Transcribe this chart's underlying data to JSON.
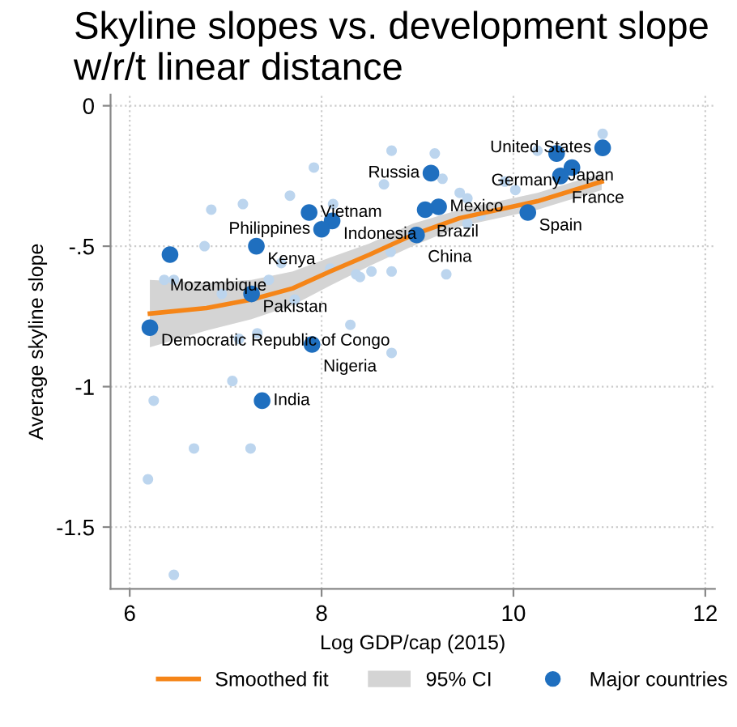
{
  "chart_data": {
    "type": "scatter",
    "title": "Skyline slopes vs. development slope w/r/t linear distance",
    "xlabel": "Log GDP/cap (2015)",
    "ylabel": "Average skyline slope",
    "xlim": [
      5.8,
      12.1
    ],
    "xticks": [
      6,
      8,
      10,
      12
    ],
    "ylim": [
      -1.72,
      0.04
    ],
    "yticks": [
      {
        "value": 0,
        "label": "0"
      },
      {
        "value": -0.5,
        "label": "-.5"
      },
      {
        "value": -1,
        "label": "-1"
      },
      {
        "value": -1.5,
        "label": "-1.5"
      }
    ],
    "grid": true,
    "legend": "bottom",
    "annotations": [
      "95% CI"
    ],
    "series": [
      {
        "color": "#bcd5ee",
        "marker": "circle",
        "x": [
          8.73,
          7.92,
          8.65,
          7.67,
          6.85,
          7.18,
          8.12,
          6.78,
          7.58,
          8.72,
          8.73,
          8.52,
          8.36,
          8.4,
          8.09,
          7.45,
          6.36,
          6.46,
          6.96,
          7.72,
          8.3,
          7.33,
          7.14,
          8.73,
          7.07,
          10.93,
          10.25,
          9.18,
          9.91,
          10.02,
          9.26,
          9.44,
          9.52,
          9.66,
          9.52,
          9.3,
          6.25,
          6.67,
          7.26,
          6.19,
          6.46
        ],
        "values": [
          -0.16,
          -0.22,
          -0.28,
          -0.32,
          -0.37,
          -0.35,
          -0.35,
          -0.5,
          -0.56,
          -0.52,
          -0.59,
          -0.59,
          -0.6,
          -0.61,
          -0.58,
          -0.62,
          -0.62,
          -0.62,
          -0.67,
          -0.69,
          -0.78,
          -0.81,
          -0.83,
          -0.88,
          -0.98,
          -0.1,
          -0.16,
          -0.17,
          -0.27,
          -0.3,
          -0.26,
          -0.31,
          -0.33,
          -0.39,
          -0.42,
          -0.6,
          -1.05,
          -1.22,
          -1.22,
          -1.33,
          -1.67
        ]
      },
      {
        "type": "line",
        "name": "Smoothed fit",
        "color": "#f58518",
        "x": [
          6.21,
          6.8,
          7.27,
          7.7,
          8.09,
          8.5,
          8.95,
          9.44,
          10.25,
          10.92
        ],
        "values": [
          -0.74,
          -0.72,
          -0.69,
          -0.65,
          -0.59,
          -0.53,
          -0.46,
          -0.4,
          -0.34,
          -0.27
        ],
        "lower": [
          -0.86,
          -0.8,
          -0.76,
          -0.71,
          -0.64,
          -0.57,
          -0.5,
          -0.43,
          -0.37,
          -0.3
        ],
        "upper": [
          -0.62,
          -0.63,
          -0.62,
          -0.59,
          -0.54,
          -0.49,
          -0.42,
          -0.37,
          -0.31,
          -0.24
        ]
      },
      {
        "type": "scatter",
        "name": "Major countries",
        "color": "#1f6fbf",
        "marker": "circle",
        "x": [
          7.87,
          8.11,
          8.0,
          7.32,
          6.42,
          7.27,
          6.21,
          7.9,
          7.38,
          10.93,
          10.45,
          10.61,
          10.49,
          9.14,
          9.22,
          9.08,
          8.99,
          10.15
        ],
        "values": [
          -0.38,
          -0.41,
          -0.44,
          -0.5,
          -0.53,
          -0.67,
          -0.79,
          -0.85,
          -1.05,
          -0.15,
          -0.17,
          -0.22,
          -0.25,
          -0.24,
          -0.36,
          -0.37,
          -0.46,
          -0.38
        ],
        "value_labels": [
          "Vietnam",
          "Indonesia",
          "Philippines",
          "Kenya",
          "Mozambique",
          "Pakistan",
          "Democratic Republic of Congo",
          "Nigeria",
          "India",
          "United States",
          "Japan",
          "Germany",
          "France",
          "Russia",
          "Mexico",
          "Brazil",
          "China",
          "Spain"
        ]
      }
    ]
  }
}
